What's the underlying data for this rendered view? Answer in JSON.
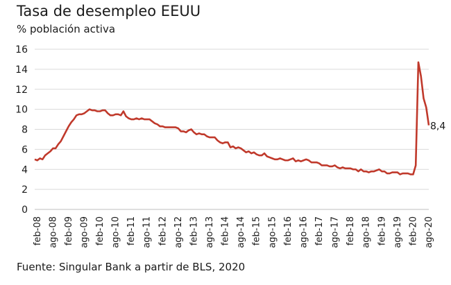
{
  "title": "Tasa de desempleo EEUU",
  "subtitle": "% población activa",
  "source": "Fuente: Singular Bank a partir de BLS, 2020",
  "chart_data": {
    "type": "line",
    "title": "Tasa de desempleo EEUU",
    "ylabel": "% población activa",
    "ylim": [
      0,
      16
    ],
    "yticks": [
      0,
      2,
      4,
      6,
      8,
      10,
      12,
      14,
      16
    ],
    "grid": "horizontal",
    "line_color": "#c0392b",
    "xlim": [
      "2008-01",
      "2020-08"
    ],
    "xtick_labels": [
      "feb-08",
      "ago-08",
      "feb-09",
      "ago-09",
      "feb-10",
      "ago-10",
      "feb-11",
      "ago-11",
      "feb-12",
      "ago-12",
      "feb-13",
      "ago-13",
      "feb-14",
      "ago-14",
      "feb-15",
      "ago-15",
      "feb-16",
      "ago-16",
      "feb-17",
      "ago-17",
      "feb-18",
      "ago-18",
      "feb-19",
      "ago-19",
      "feb-20",
      "ago-20"
    ],
    "end_label": "8,4",
    "series": [
      {
        "x": [
          "2008-01",
          "2008-02",
          "2008-03",
          "2008-04",
          "2008-05",
          "2008-06",
          "2008-07",
          "2008-08",
          "2008-09",
          "2008-10",
          "2008-11",
          "2008-12",
          "2009-01",
          "2009-02",
          "2009-03",
          "2009-04",
          "2009-05",
          "2009-06",
          "2009-07",
          "2009-08",
          "2009-09",
          "2009-10",
          "2009-11",
          "2009-12",
          "2010-01",
          "2010-02",
          "2010-03",
          "2010-04",
          "2010-05",
          "2010-06",
          "2010-07",
          "2010-08",
          "2010-09",
          "2010-10",
          "2010-11",
          "2010-12",
          "2011-01",
          "2011-02",
          "2011-03",
          "2011-04",
          "2011-05",
          "2011-06",
          "2011-07",
          "2011-08",
          "2011-09",
          "2011-10",
          "2011-11",
          "2011-12",
          "2012-01",
          "2012-02",
          "2012-03",
          "2012-04",
          "2012-05",
          "2012-06",
          "2012-07",
          "2012-08",
          "2012-09",
          "2012-10",
          "2012-11",
          "2012-12",
          "2013-01",
          "2013-02",
          "2013-03",
          "2013-04",
          "2013-05",
          "2013-06",
          "2013-07",
          "2013-08",
          "2013-09",
          "2013-10",
          "2013-11",
          "2013-12",
          "2014-01",
          "2014-02",
          "2014-03",
          "2014-04",
          "2014-05",
          "2014-06",
          "2014-07",
          "2014-08",
          "2014-09",
          "2014-10",
          "2014-11",
          "2014-12",
          "2015-01",
          "2015-02",
          "2015-03",
          "2015-04",
          "2015-05",
          "2015-06",
          "2015-07",
          "2015-08",
          "2015-09",
          "2015-10",
          "2015-11",
          "2015-12",
          "2016-01",
          "2016-02",
          "2016-03",
          "2016-04",
          "2016-05",
          "2016-06",
          "2016-07",
          "2016-08",
          "2016-09",
          "2016-10",
          "2016-11",
          "2016-12",
          "2017-01",
          "2017-02",
          "2017-03",
          "2017-04",
          "2017-05",
          "2017-06",
          "2017-07",
          "2017-08",
          "2017-09",
          "2017-10",
          "2017-11",
          "2017-12",
          "2018-01",
          "2018-02",
          "2018-03",
          "2018-04",
          "2018-05",
          "2018-06",
          "2018-07",
          "2018-08",
          "2018-09",
          "2018-10",
          "2018-11",
          "2018-12",
          "2019-01",
          "2019-02",
          "2019-03",
          "2019-04",
          "2019-05",
          "2019-06",
          "2019-07",
          "2019-08",
          "2019-09",
          "2019-10",
          "2019-11",
          "2019-12",
          "2020-01",
          "2020-02",
          "2020-03",
          "2020-04",
          "2020-05",
          "2020-06",
          "2020-07",
          "2020-08"
        ],
        "y": [
          5.0,
          4.9,
          5.1,
          5.0,
          5.4,
          5.6,
          5.8,
          6.1,
          6.1,
          6.5,
          6.8,
          7.3,
          7.8,
          8.3,
          8.7,
          9.0,
          9.4,
          9.5,
          9.5,
          9.6,
          9.8,
          10.0,
          9.9,
          9.9,
          9.8,
          9.8,
          9.9,
          9.9,
          9.6,
          9.4,
          9.4,
          9.5,
          9.5,
          9.4,
          9.8,
          9.3,
          9.1,
          9.0,
          9.0,
          9.1,
          9.0,
          9.1,
          9.0,
          9.0,
          9.0,
          8.8,
          8.6,
          8.5,
          8.3,
          8.3,
          8.2,
          8.2,
          8.2,
          8.2,
          8.2,
          8.1,
          7.8,
          7.8,
          7.7,
          7.9,
          8.0,
          7.7,
          7.5,
          7.6,
          7.5,
          7.5,
          7.3,
          7.2,
          7.2,
          7.2,
          6.9,
          6.7,
          6.6,
          6.7,
          6.7,
          6.2,
          6.3,
          6.1,
          6.2,
          6.1,
          5.9,
          5.7,
          5.8,
          5.6,
          5.7,
          5.5,
          5.4,
          5.4,
          5.6,
          5.3,
          5.2,
          5.1,
          5.0,
          5.0,
          5.1,
          5.0,
          4.9,
          4.9,
          5.0,
          5.1,
          4.8,
          4.9,
          4.8,
          4.9,
          5.0,
          4.9,
          4.7,
          4.7,
          4.7,
          4.6,
          4.4,
          4.4,
          4.4,
          4.3,
          4.3,
          4.4,
          4.2,
          4.1,
          4.2,
          4.1,
          4.1,
          4.1,
          4.0,
          4.0,
          3.8,
          4.0,
          3.8,
          3.8,
          3.7,
          3.8,
          3.8,
          3.9,
          4.0,
          3.8,
          3.8,
          3.6,
          3.6,
          3.7,
          3.7,
          3.7,
          3.5,
          3.6,
          3.6,
          3.6,
          3.5,
          3.5,
          4.4,
          14.7,
          13.3,
          11.1,
          10.2,
          8.4
        ]
      }
    ]
  }
}
